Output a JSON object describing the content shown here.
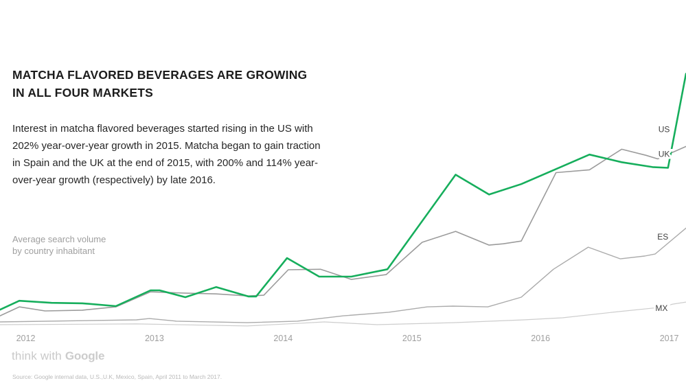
{
  "header": {
    "title": "MATCHA FLAVORED BEVERAGES ARE GROWING IN ALL FOUR MARKETS",
    "intro": "Interest in matcha flavored beverages started rising in the US with 202% year-over-year growth in 2015. Matcha began to gain traction in Spain and the UK at the end of 2015, with 200% and 114% year-over-year growth (respectively) by late 2016."
  },
  "axis_caption": {
    "line1": "Average search volume",
    "line2": "by country inhabitant"
  },
  "chart_data": {
    "type": "line",
    "title": "Matcha flavored beverages are growing in all four markets",
    "ylabel": "Average search volume by country inhabitant",
    "xlabel": "",
    "grid": false,
    "legend_position": "line-end-labels",
    "x_range": [
      2011.8,
      2017.13
    ],
    "y_range": [
      0,
      101.5
    ],
    "x_ticks": [
      2012,
      2013,
      2014,
      2015,
      2016,
      2017
    ],
    "x_tick_labels": [
      "2012",
      "2013",
      "2014",
      "2015",
      "2016",
      "2017"
    ],
    "tick_color": "#9e9e9e",
    "label_color": "#3f3f3f",
    "series": [
      {
        "name": "MX",
        "color": "#cdcdcd",
        "width": 1.2,
        "label_t": 2016.94,
        "label_v": 7.3,
        "points": [
          [
            2011.8,
            0.8
          ],
          [
            2012.86,
            1.1
          ],
          [
            2013.72,
            0.3
          ],
          [
            2014.11,
            1.3
          ],
          [
            2014.32,
            1.9
          ],
          [
            2014.73,
            0.8
          ],
          [
            2015.32,
            1.6
          ],
          [
            2015.87,
            2.7
          ],
          [
            2016.17,
            3.5
          ],
          [
            2016.6,
            5.9
          ],
          [
            2016.91,
            7.5
          ],
          [
            2017.03,
            8.9
          ],
          [
            2017.13,
            9.7
          ]
        ]
      },
      {
        "name": "ES",
        "color": "#ababab",
        "width": 1.4,
        "label_t": 2016.95,
        "label_v": 35.3,
        "points": [
          [
            2011.8,
            1.9
          ],
          [
            2012.86,
            2.7
          ],
          [
            2012.96,
            3.2
          ],
          [
            2013.17,
            2.2
          ],
          [
            2013.72,
            1.6
          ],
          [
            2014.11,
            2.2
          ],
          [
            2014.47,
            4.3
          ],
          [
            2014.82,
            5.7
          ],
          [
            2015.12,
            7.8
          ],
          [
            2015.32,
            8.1
          ],
          [
            2015.59,
            7.8
          ],
          [
            2015.85,
            11.6
          ],
          [
            2016.1,
            22.6
          ],
          [
            2016.37,
            31.3
          ],
          [
            2016.62,
            26.7
          ],
          [
            2016.81,
            27.8
          ],
          [
            2016.89,
            28.6
          ],
          [
            2017.13,
            38.8
          ]
        ]
      },
      {
        "name": "UK",
        "color": "#9b9b9b",
        "width": 1.6,
        "label_t": 2016.96,
        "label_v": 67.9,
        "points": [
          [
            2011.8,
            4.3
          ],
          [
            2011.95,
            7.8
          ],
          [
            2012.15,
            6.2
          ],
          [
            2012.44,
            6.5
          ],
          [
            2012.7,
            7.8
          ],
          [
            2012.97,
            13.7
          ],
          [
            2013.24,
            13.2
          ],
          [
            2013.48,
            12.9
          ],
          [
            2013.73,
            12.1
          ],
          [
            2013.85,
            12.4
          ],
          [
            2014.04,
            22.4
          ],
          [
            2014.29,
            22.6
          ],
          [
            2014.53,
            18.6
          ],
          [
            2014.8,
            20.5
          ],
          [
            2015.08,
            33.2
          ],
          [
            2015.34,
            37.5
          ],
          [
            2015.6,
            32.1
          ],
          [
            2015.71,
            32.6
          ],
          [
            2015.85,
            33.7
          ],
          [
            2016.12,
            60.6
          ],
          [
            2016.38,
            61.7
          ],
          [
            2016.63,
            69.8
          ],
          [
            2016.82,
            67.4
          ],
          [
            2016.91,
            66.0
          ],
          [
            2017.13,
            70.9
          ]
        ]
      },
      {
        "name": "US",
        "color": "#16ae5c",
        "width": 2.6,
        "label_t": 2016.96,
        "label_v": 77.6,
        "points": [
          [
            2011.8,
            6.7
          ],
          [
            2011.95,
            10.2
          ],
          [
            2012.2,
            9.4
          ],
          [
            2012.44,
            9.2
          ],
          [
            2012.7,
            8.1
          ],
          [
            2012.97,
            14.3
          ],
          [
            2013.04,
            14.3
          ],
          [
            2013.24,
            11.6
          ],
          [
            2013.48,
            15.6
          ],
          [
            2013.73,
            11.9
          ],
          [
            2013.79,
            11.9
          ],
          [
            2014.03,
            27.0
          ],
          [
            2014.28,
            19.7
          ],
          [
            2014.53,
            19.7
          ],
          [
            2014.81,
            22.6
          ],
          [
            2015.34,
            59.8
          ],
          [
            2015.6,
            52.0
          ],
          [
            2015.85,
            56.1
          ],
          [
            2016.12,
            62.0
          ],
          [
            2016.38,
            67.7
          ],
          [
            2016.63,
            64.7
          ],
          [
            2016.87,
            62.8
          ],
          [
            2016.99,
            62.5
          ],
          [
            2017.13,
            99.5
          ]
        ]
      }
    ]
  },
  "footer": {
    "logo_think": "think",
    "logo_with": "with",
    "logo_google": "Google",
    "source": "Source: Google internal data, U.S.,U.K, Mexico, Spain, April 2011 to March 2017."
  }
}
